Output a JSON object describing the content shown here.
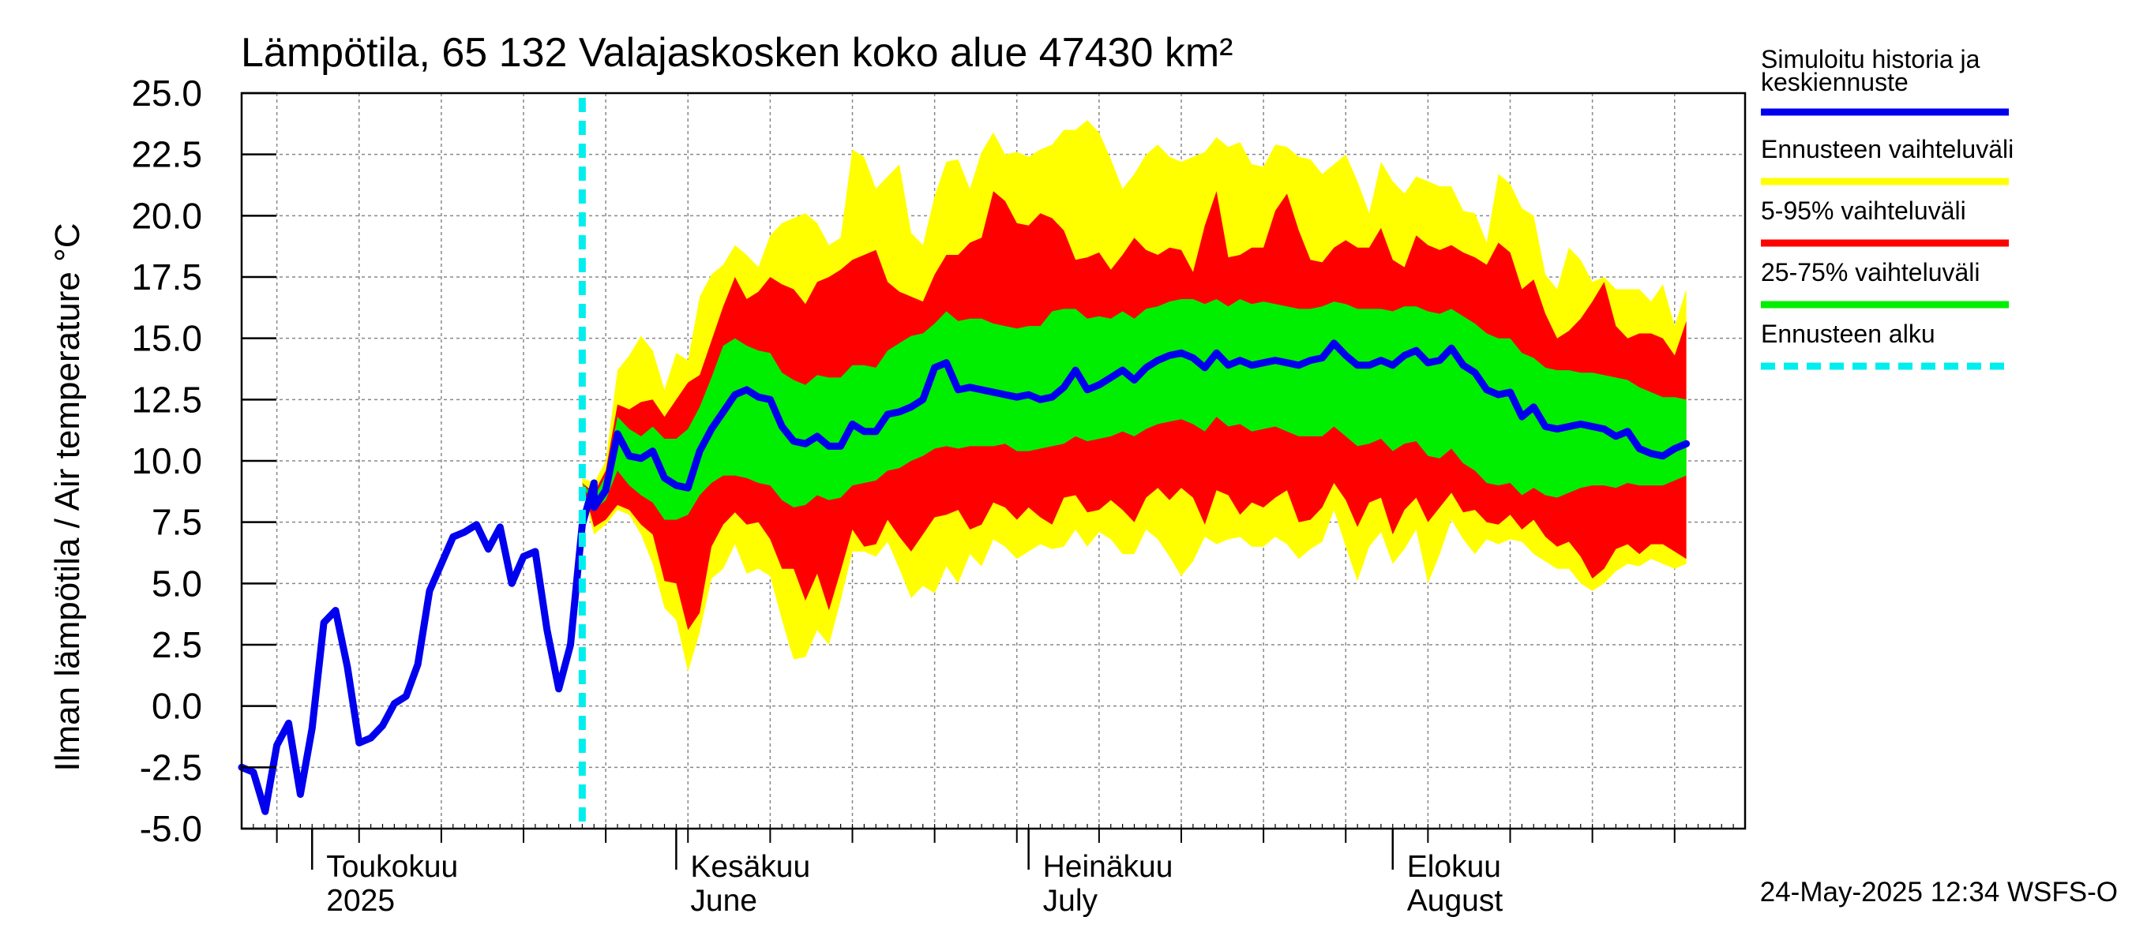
{
  "title": "Lämpötila, 65 132 Valajaskosken koko alue 47430 km²",
  "timestamp": "24-May-2025 12:34 WSFS-O",
  "colors": {
    "median": "#0000ee",
    "range": "#ffff00",
    "p5_95": "#ff0000",
    "p25_75": "#00ee00",
    "forecast_start": "#00eeee",
    "grid": "#888888",
    "axis": "#000000"
  },
  "chart_data": {
    "type": "area",
    "title": "Lämpötila, 65 132 Valajaskosken koko alue 47430 km²",
    "ylabel": "Ilman lämpötila / Air temperature   °C",
    "ylim": [
      -5.0,
      25.0
    ],
    "y_ticks": [
      "-5.0",
      "-2.5",
      "0.0",
      "2.5",
      "5.0",
      "7.5",
      "10.0",
      "12.5",
      "15.0",
      "17.5",
      "20.0",
      "22.5",
      "25.0"
    ],
    "x_start": "2025-04-25",
    "x_end": "2025-08-31",
    "month_labels": [
      {
        "date": "2025-05-01",
        "line1": "Toukokuu",
        "line2": "2025"
      },
      {
        "date": "2025-06-01",
        "line1": "Kesäkuu",
        "line2": "June"
      },
      {
        "date": "2025-07-01",
        "line1": "Heinäkuu",
        "line2": "July"
      },
      {
        "date": "2025-08-01",
        "line1": "Elokuu",
        "line2": "August"
      }
    ],
    "forecast_start": "2025-05-24",
    "legend_position": "right",
    "legend": [
      {
        "label_line1": "Simuloitu historia ja",
        "label_line2": "keskiennuste",
        "color": "#0000ee",
        "style": "solid"
      },
      {
        "label_line1": "Ennusteen vaihteluväli",
        "label_line2": "",
        "color": "#ffff00",
        "style": "solid"
      },
      {
        "label_line1": "5-95% vaihteluväli",
        "label_line2": "",
        "color": "#ff0000",
        "style": "solid"
      },
      {
        "label_line1": "25-75% vaihteluväli",
        "label_line2": "",
        "color": "#00ee00",
        "style": "solid"
      },
      {
        "label_line1": "Ennusteen alku",
        "label_line2": "",
        "color": "#00eeee",
        "style": "dashed"
      }
    ],
    "history": {
      "start_date": "2025-04-25",
      "values": [
        -2.5,
        -2.7,
        -4.3,
        -1.6,
        -0.7,
        -3.6,
        -0.9,
        3.4,
        3.9,
        1.6,
        -1.5,
        -1.3,
        -0.8,
        0.1,
        0.4,
        1.7,
        4.7,
        5.8,
        6.9,
        7.1,
        7.4,
        6.4,
        7.3,
        5.0,
        6.1,
        6.3,
        3.1,
        0.7,
        2.5,
        7.4,
        9.1
      ]
    },
    "forecast": {
      "start_date": "2025-05-24",
      "median": [
        9.1,
        8.1,
        8.8,
        11.1,
        10.2,
        10.1,
        10.4,
        9.3,
        9.0,
        8.9,
        10.4,
        11.3,
        12.0,
        12.7,
        12.9,
        12.6,
        12.5,
        11.4,
        10.8,
        10.7,
        11.0,
        10.6,
        10.6,
        11.5,
        11.2,
        11.2,
        11.9,
        12.0,
        12.2,
        12.5,
        13.8,
        14.0,
        12.9,
        13.0,
        12.9,
        12.8,
        12.7,
        12.6,
        12.7,
        12.5,
        12.6,
        13.0,
        13.7,
        12.9,
        13.1,
        13.4,
        13.7,
        13.3,
        13.8,
        14.1,
        14.3,
        14.4,
        14.2,
        13.8,
        14.4,
        13.9,
        14.1,
        13.9,
        14.0,
        14.1,
        14.0,
        13.9,
        14.1,
        14.2,
        14.8,
        14.3,
        13.9,
        13.9,
        14.1,
        13.9,
        14.3,
        14.5,
        14.0,
        14.1,
        14.6,
        13.9,
        13.6,
        12.9,
        12.7,
        12.8,
        11.8,
        12.2,
        11.4,
        11.3,
        11.4,
        11.5,
        11.4,
        11.3,
        11.0,
        11.2,
        10.5,
        10.3,
        10.2,
        10.5,
        10.7
      ],
      "p25": [
        9.1,
        8.0,
        8.4,
        9.6,
        9.0,
        8.6,
        8.3,
        7.6,
        7.6,
        7.8,
        8.6,
        9.1,
        9.4,
        9.4,
        9.3,
        9.1,
        9.0,
        8.4,
        8.1,
        8.2,
        8.6,
        8.4,
        8.5,
        9.0,
        9.1,
        9.2,
        9.6,
        9.7,
        10.0,
        10.2,
        10.5,
        10.6,
        10.5,
        10.6,
        10.6,
        10.6,
        10.7,
        10.4,
        10.4,
        10.5,
        10.6,
        10.7,
        11.0,
        10.8,
        10.9,
        11.0,
        11.2,
        11.0,
        11.3,
        11.5,
        11.6,
        11.7,
        11.5,
        11.2,
        11.8,
        11.4,
        11.5,
        11.2,
        11.3,
        11.4,
        11.2,
        11.0,
        11.0,
        11.0,
        11.4,
        11.0,
        10.6,
        10.7,
        10.9,
        10.4,
        10.7,
        10.8,
        10.2,
        10.1,
        10.5,
        9.9,
        9.6,
        9.1,
        9.0,
        9.1,
        8.6,
        8.9,
        8.6,
        8.5,
        8.7,
        8.9,
        9.0,
        9.0,
        8.9,
        9.1,
        9.0,
        9.0,
        9.0,
        9.2,
        9.4
      ],
      "p75": [
        9.1,
        8.5,
        9.4,
        11.8,
        11.3,
        11.0,
        11.4,
        10.9,
        10.9,
        11.3,
        12.2,
        13.4,
        14.7,
        15.0,
        14.7,
        14.5,
        14.4,
        13.6,
        13.3,
        13.1,
        13.5,
        13.4,
        13.4,
        13.9,
        13.9,
        13.8,
        14.5,
        14.8,
        15.1,
        15.2,
        15.6,
        16.1,
        15.7,
        15.8,
        15.8,
        15.6,
        15.5,
        15.4,
        15.5,
        15.5,
        16.1,
        16.2,
        16.2,
        15.8,
        15.9,
        15.8,
        16.1,
        15.8,
        16.2,
        16.3,
        16.5,
        16.6,
        16.6,
        16.4,
        16.6,
        16.3,
        16.6,
        16.4,
        16.5,
        16.4,
        16.3,
        16.2,
        16.2,
        16.3,
        16.5,
        16.4,
        16.2,
        16.2,
        16.2,
        16.1,
        16.3,
        16.3,
        16.1,
        16.0,
        16.2,
        15.9,
        15.6,
        15.2,
        15.0,
        15.0,
        14.4,
        14.2,
        13.8,
        13.7,
        13.7,
        13.6,
        13.6,
        13.5,
        13.4,
        13.3,
        13.0,
        12.8,
        12.6,
        12.6,
        12.5
      ],
      "p5": [
        9.1,
        7.3,
        7.6,
        8.2,
        8.0,
        7.4,
        7.0,
        5.1,
        5.0,
        3.1,
        3.8,
        6.5,
        7.4,
        7.9,
        7.4,
        7.5,
        6.8,
        5.6,
        5.6,
        4.3,
        5.4,
        3.9,
        5.5,
        7.2,
        6.5,
        6.6,
        7.6,
        6.9,
        6.3,
        7.0,
        7.7,
        7.8,
        8.0,
        7.2,
        7.4,
        8.3,
        8.1,
        7.6,
        8.1,
        7.7,
        7.4,
        8.5,
        8.6,
        7.9,
        8.0,
        8.4,
        8.0,
        7.5,
        8.5,
        8.9,
        8.4,
        8.9,
        8.5,
        7.4,
        8.8,
        8.6,
        7.8,
        8.3,
        8.1,
        8.5,
        8.8,
        7.5,
        7.6,
        8.1,
        9.1,
        8.4,
        7.3,
        8.3,
        8.5,
        7.0,
        8.0,
        8.5,
        7.5,
        8.1,
        8.7,
        7.9,
        8.0,
        7.5,
        7.4,
        7.8,
        7.2,
        7.6,
        6.9,
        6.5,
        6.7,
        6.1,
        5.2,
        5.6,
        6.4,
        6.6,
        6.2,
        6.6,
        6.6,
        6.3,
        6.0
      ],
      "p95": [
        9.1,
        8.7,
        9.6,
        12.3,
        12.1,
        12.4,
        12.5,
        11.8,
        12.5,
        13.2,
        13.5,
        14.9,
        16.3,
        17.5,
        16.6,
        16.9,
        17.5,
        17.2,
        17.0,
        16.4,
        17.3,
        17.5,
        17.8,
        18.2,
        18.4,
        18.6,
        17.3,
        16.9,
        16.7,
        16.5,
        17.6,
        18.4,
        18.4,
        18.9,
        19.1,
        21.0,
        20.6,
        19.7,
        19.6,
        20.1,
        19.9,
        19.4,
        18.2,
        18.3,
        18.5,
        17.8,
        18.4,
        19.1,
        18.6,
        18.4,
        18.7,
        18.6,
        17.7,
        19.6,
        21.0,
        18.3,
        18.4,
        18.7,
        18.7,
        20.2,
        20.9,
        19.4,
        18.2,
        18.1,
        18.7,
        19.0,
        18.7,
        18.7,
        19.5,
        18.2,
        17.9,
        19.2,
        18.8,
        18.6,
        18.8,
        18.5,
        18.3,
        18.0,
        18.9,
        18.5,
        17.0,
        17.4,
        16.0,
        15.0,
        15.3,
        15.8,
        16.5,
        17.3,
        15.5,
        15.0,
        15.2,
        15.2,
        15.0,
        14.3,
        15.7
      ],
      "min": [
        8.8,
        7.0,
        7.4,
        8.0,
        7.8,
        7.0,
        5.8,
        4.0,
        3.5,
        1.4,
        3.0,
        5.2,
        5.6,
        6.6,
        5.4,
        5.6,
        5.3,
        3.5,
        1.9,
        2.0,
        3.1,
        2.5,
        4.3,
        6.3,
        6.3,
        6.1,
        6.7,
        5.6,
        4.4,
        4.9,
        4.6,
        5.7,
        5.0,
        6.2,
        5.7,
        6.8,
        6.5,
        6.0,
        6.3,
        6.6,
        6.4,
        6.5,
        7.2,
        6.5,
        7.1,
        6.8,
        6.2,
        6.2,
        7.2,
        6.8,
        6.1,
        5.3,
        5.9,
        6.9,
        6.6,
        6.8,
        6.9,
        6.5,
        6.5,
        6.9,
        6.6,
        6.0,
        6.4,
        6.7,
        8.0,
        6.5,
        5.1,
        6.5,
        7.1,
        5.8,
        6.4,
        7.2,
        5.0,
        6.2,
        7.6,
        6.8,
        6.2,
        6.8,
        6.6,
        6.8,
        6.7,
        6.2,
        5.9,
        5.6,
        5.6,
        5.0,
        4.7,
        5.0,
        5.5,
        5.8,
        5.7,
        6.0,
        5.8,
        5.6,
        5.8
      ],
      "max": [
        9.3,
        9.1,
        10.0,
        13.7,
        14.3,
        15.1,
        14.5,
        12.9,
        14.4,
        14.1,
        16.7,
        17.6,
        18.0,
        18.8,
        18.4,
        17.9,
        19.2,
        19.7,
        19.9,
        20.1,
        19.7,
        18.8,
        19.1,
        22.7,
        22.4,
        21.1,
        21.6,
        22.1,
        19.3,
        18.8,
        20.8,
        22.2,
        22.3,
        21.1,
        22.6,
        23.4,
        22.5,
        22.6,
        22.4,
        22.7,
        22.9,
        23.5,
        23.5,
        23.9,
        23.4,
        22.3,
        21.1,
        21.7,
        22.5,
        22.9,
        22.4,
        22.2,
        22.4,
        22.6,
        23.2,
        22.8,
        23.0,
        22.1,
        22.0,
        22.9,
        22.8,
        22.4,
        22.3,
        21.7,
        22.1,
        22.5,
        21.4,
        20.1,
        22.2,
        21.4,
        20.9,
        21.6,
        21.4,
        21.2,
        21.2,
        20.2,
        20.1,
        18.9,
        21.7,
        21.3,
        20.3,
        20.0,
        17.6,
        17.0,
        18.7,
        18.2,
        17.3,
        17.5,
        17.0,
        17.0,
        17.0,
        16.5,
        17.2,
        15.5,
        17.0
      ]
    }
  }
}
